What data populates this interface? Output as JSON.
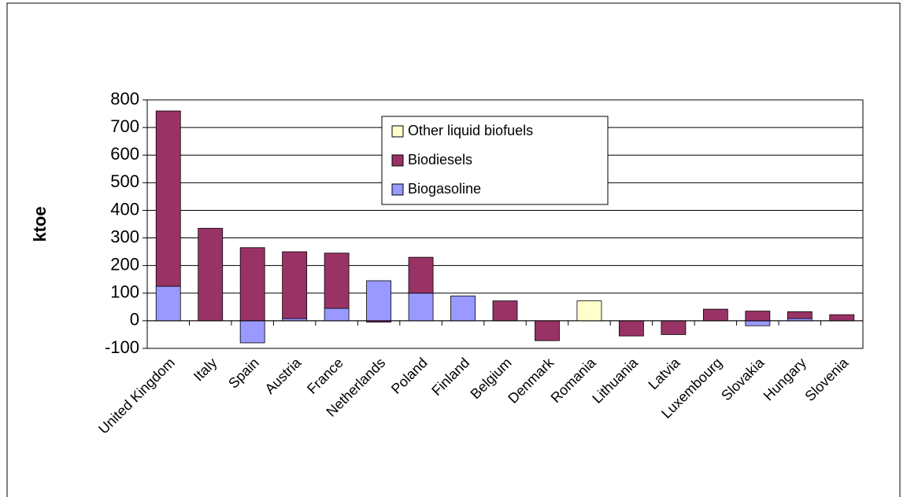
{
  "chart_data": {
    "type": "stacked_bar",
    "y_label": "ktoe",
    "categories": [
      "United Kingdom",
      "Italy",
      "Spain",
      "Austria",
      "France",
      "Netherlands",
      "Poland",
      "Finland",
      "Belgium",
      "Denmark",
      "Romania",
      "Lithuania",
      "Latvia",
      "Luxembourg",
      "Slovakia",
      "Hungary",
      "Slovenia"
    ],
    "series": [
      {
        "name": "Biogasoline",
        "color": "#9999ff",
        "values": [
          125,
          0,
          -80,
          8,
          45,
          145,
          100,
          90,
          0,
          0,
          0,
          0,
          0,
          0,
          -18,
          8,
          0
        ]
      },
      {
        "name": "Biodiesels",
        "color": "#993366",
        "values": [
          635,
          335,
          265,
          242,
          200,
          -5,
          130,
          0,
          72,
          -72,
          0,
          -55,
          -50,
          42,
          35,
          25,
          22
        ]
      },
      {
        "name": "Other liquid biofuels",
        "color": "#ffffcc",
        "values": [
          0,
          0,
          0,
          0,
          0,
          0,
          0,
          0,
          0,
          0,
          72,
          0,
          0,
          0,
          0,
          0,
          0
        ]
      }
    ],
    "ylim": [
      -100,
      800
    ],
    "yticks": [
      -100,
      0,
      100,
      200,
      300,
      400,
      500,
      600,
      700,
      800
    ],
    "grid": true,
    "legend": "upper center"
  }
}
